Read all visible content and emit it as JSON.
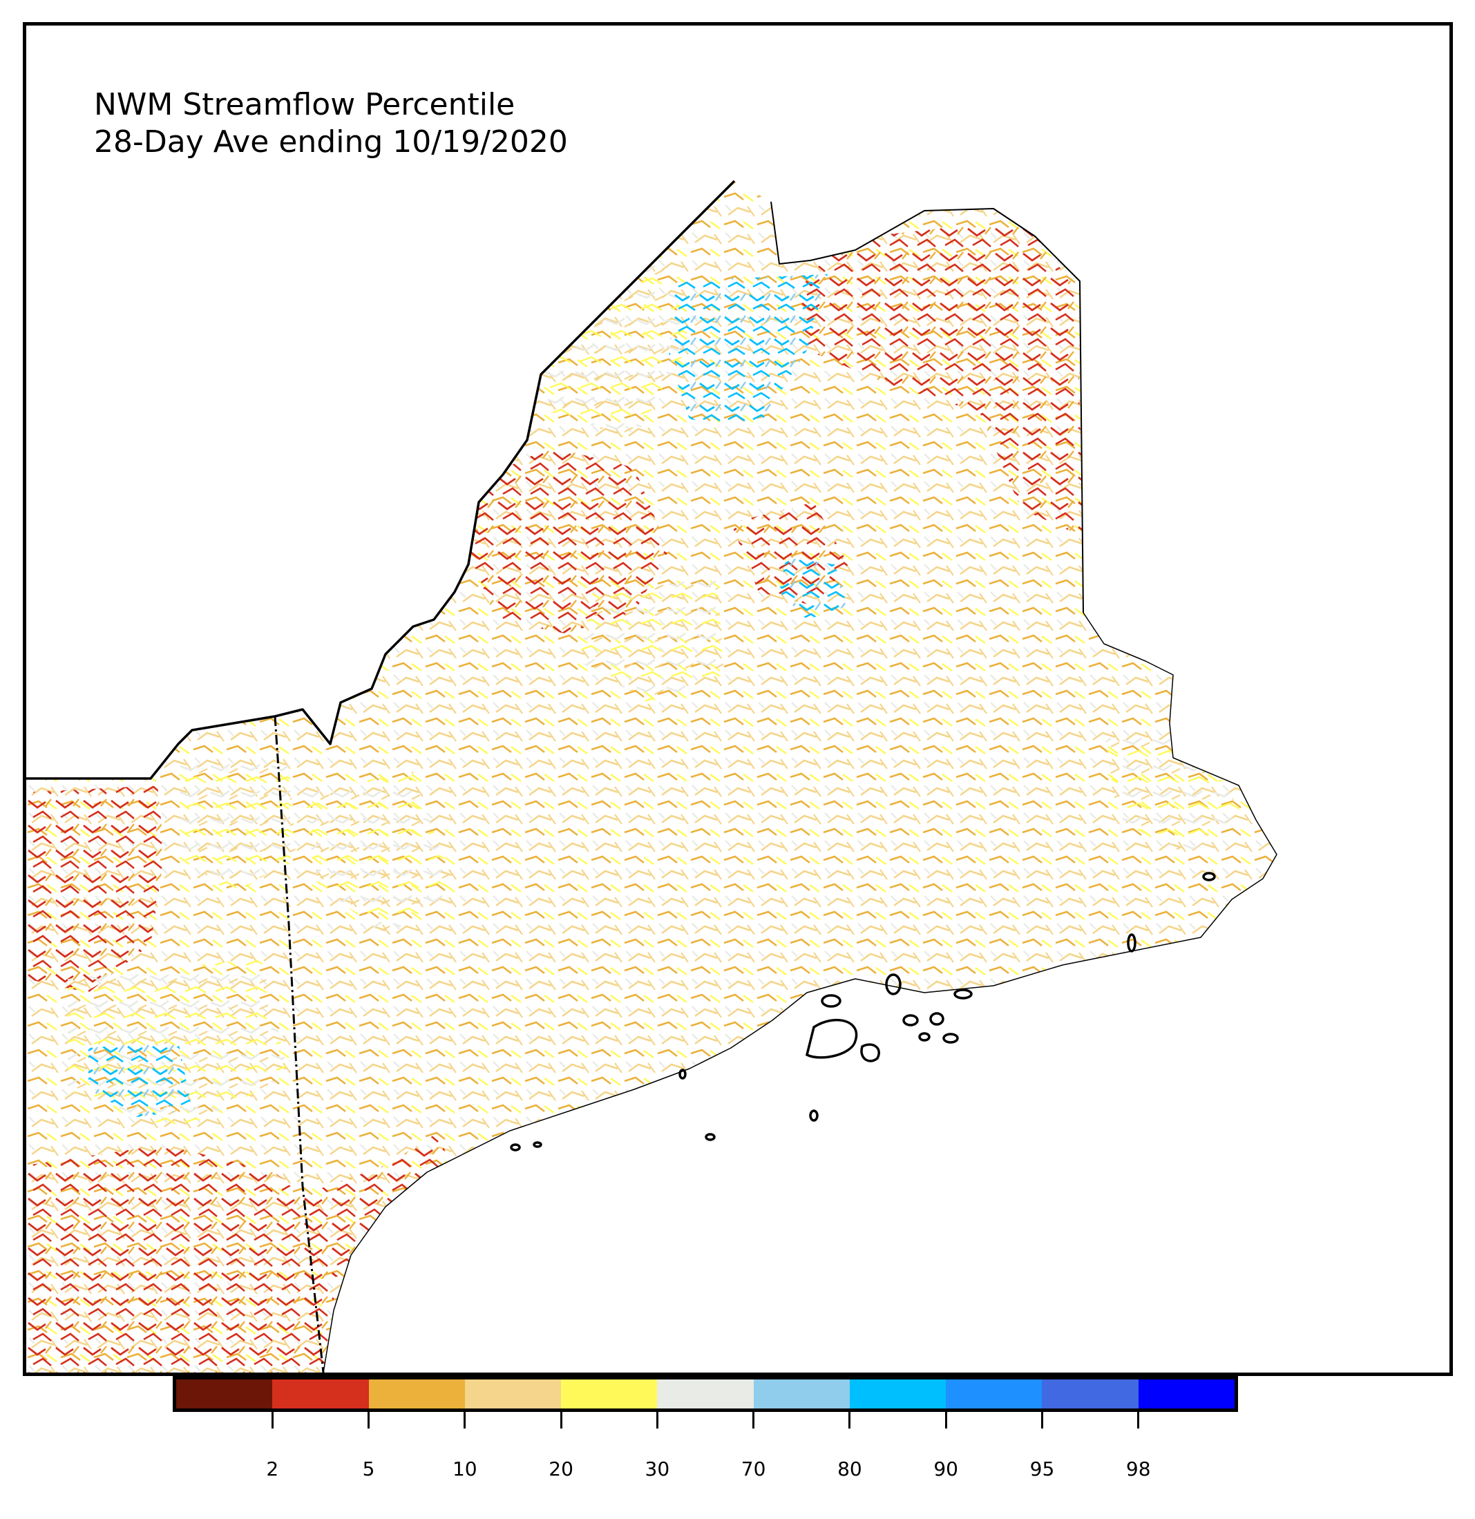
{
  "title": {
    "line1": "NWM Streamflow Percentile",
    "line2": "28-Day Ave ending 10/19/2020"
  },
  "legend": {
    "colors": [
      "#6b1607",
      "#d52f1d",
      "#ebb13a",
      "#f4d58b",
      "#fffa5a",
      "#e9ebe6",
      "#90cdec",
      "#00bfff",
      "#1e90ff",
      "#4169e1",
      "#0000ff"
    ],
    "tick_labels": [
      "2",
      "5",
      "10",
      "20",
      "30",
      "70",
      "80",
      "90",
      "95",
      "98"
    ]
  }
}
